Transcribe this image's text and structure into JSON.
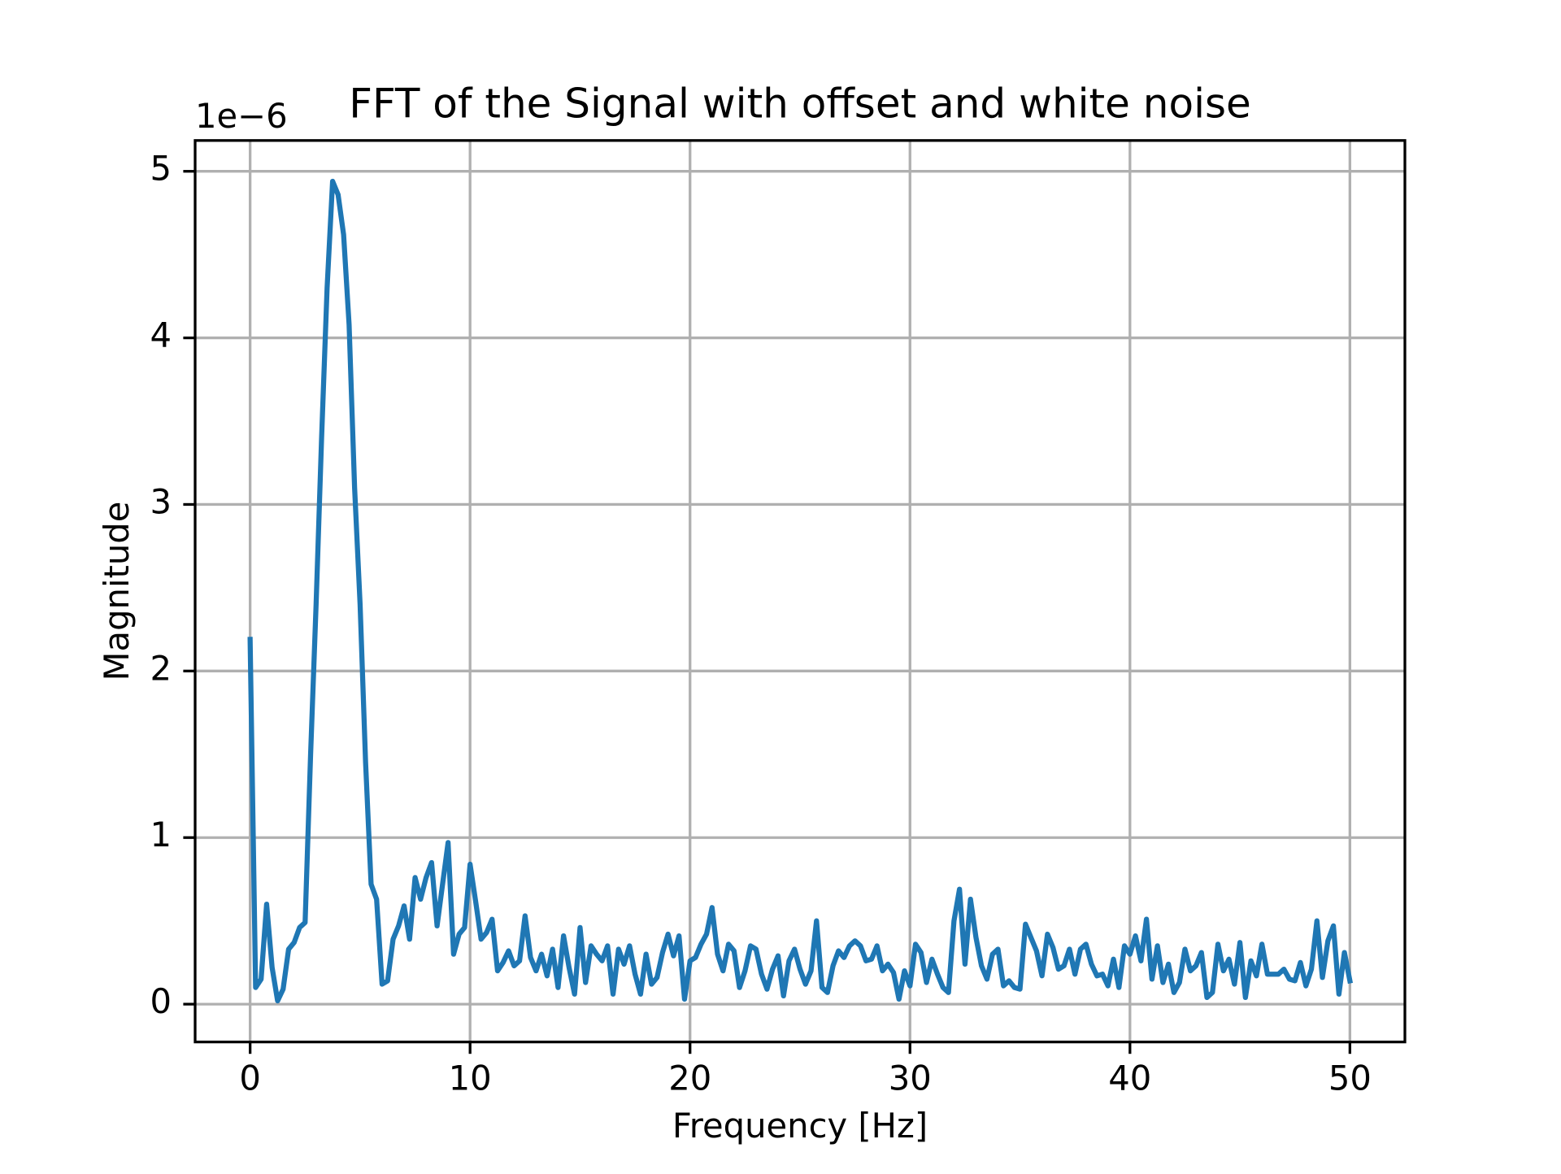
{
  "chart_data": {
    "type": "line",
    "title": "FFT of the Signal with offset and white noise",
    "x_label": "Frequency [Hz]",
    "y_label": "Magnitude",
    "y_offset_label": "1e−6",
    "color": "#1f77b4",
    "grid": true,
    "xlim": [
      -2.5,
      52.5
    ],
    "ylim": [
      -0.227,
      5.185
    ],
    "xticks": [
      0,
      10,
      20,
      30,
      40,
      50
    ],
    "yticks": [
      0,
      1,
      2,
      3,
      4,
      5
    ],
    "x": [
      0,
      0.25,
      0.5,
      0.75,
      1,
      1.25,
      1.5,
      1.75,
      2,
      2.25,
      2.5,
      2.75,
      3,
      3.25,
      3.5,
      3.75,
      4,
      4.25,
      4.5,
      4.75,
      5,
      5.25,
      5.5,
      5.75,
      6,
      6.25,
      6.5,
      6.75,
      7,
      7.25,
      7.5,
      7.75,
      8,
      8.25,
      8.5,
      8.75,
      9,
      9.25,
      9.5,
      9.75,
      10,
      10.25,
      10.5,
      10.75,
      11,
      11.25,
      11.5,
      11.75,
      12,
      12.25,
      12.5,
      12.75,
      13,
      13.25,
      13.5,
      13.75,
      14,
      14.25,
      14.5,
      14.75,
      15,
      15.25,
      15.5,
      15.75,
      16,
      16.25,
      16.5,
      16.75,
      17,
      17.25,
      17.5,
      17.75,
      18,
      18.25,
      18.5,
      18.75,
      19,
      19.25,
      19.5,
      19.75,
      20,
      20.25,
      20.5,
      20.75,
      21,
      21.25,
      21.5,
      21.75,
      22,
      22.25,
      22.5,
      22.75,
      23,
      23.25,
      23.5,
      23.75,
      24,
      24.25,
      24.5,
      24.75,
      25,
      25.25,
      25.5,
      25.75,
      26,
      26.25,
      26.5,
      26.75,
      27,
      27.25,
      27.5,
      27.75,
      28,
      28.25,
      28.5,
      28.75,
      29,
      29.25,
      29.5,
      29.75,
      30,
      30.25,
      30.5,
      30.75,
      31,
      31.25,
      31.5,
      31.75,
      32,
      32.25,
      32.5,
      32.75,
      33,
      33.25,
      33.5,
      33.75,
      34,
      34.25,
      34.5,
      34.75,
      35,
      35.25,
      35.5,
      35.75,
      36,
      36.25,
      36.5,
      36.75,
      37,
      37.25,
      37.5,
      37.75,
      38,
      38.25,
      38.5,
      38.75,
      39,
      39.25,
      39.5,
      39.75,
      40,
      40.25,
      40.5,
      40.75,
      41,
      41.25,
      41.5,
      41.75,
      42,
      42.25,
      42.5,
      42.75,
      43,
      43.25,
      43.5,
      43.75,
      44,
      44.25,
      44.5,
      44.75,
      45,
      45.25,
      45.5,
      45.75,
      46,
      46.25,
      46.5,
      46.75,
      47,
      47.25,
      47.5,
      47.75,
      48,
      48.25,
      48.5,
      48.75,
      49,
      49.25,
      49.5,
      49.75,
      50
    ],
    "values": [
      2.19,
      0.1,
      0.15,
      0.6,
      0.22,
      0.02,
      0.09,
      0.33,
      0.37,
      0.46,
      0.49,
      1.5,
      2.4,
      3.4,
      4.3,
      4.94,
      4.86,
      4.62,
      4.08,
      3.1,
      2.4,
      1.45,
      0.72,
      0.63,
      0.12,
      0.14,
      0.39,
      0.47,
      0.59,
      0.39,
      0.76,
      0.63,
      0.76,
      0.85,
      0.47,
      0.72,
      0.97,
      0.3,
      0.42,
      0.46,
      0.84,
      0.62,
      0.39,
      0.43,
      0.51,
      0.2,
      0.25,
      0.32,
      0.23,
      0.26,
      0.53,
      0.28,
      0.2,
      0.3,
      0.17,
      0.33,
      0.1,
      0.41,
      0.22,
      0.06,
      0.46,
      0.13,
      0.35,
      0.3,
      0.26,
      0.35,
      0.06,
      0.33,
      0.24,
      0.35,
      0.18,
      0.06,
      0.3,
      0.12,
      0.16,
      0.31,
      0.42,
      0.29,
      0.41,
      0.03,
      0.26,
      0.28,
      0.36,
      0.42,
      0.58,
      0.3,
      0.2,
      0.36,
      0.32,
      0.1,
      0.2,
      0.35,
      0.33,
      0.18,
      0.09,
      0.21,
      0.29,
      0.05,
      0.26,
      0.33,
      0.21,
      0.12,
      0.2,
      0.5,
      0.1,
      0.07,
      0.23,
      0.32,
      0.28,
      0.35,
      0.38,
      0.35,
      0.26,
      0.27,
      0.35,
      0.2,
      0.24,
      0.19,
      0.03,
      0.2,
      0.11,
      0.36,
      0.31,
      0.13,
      0.27,
      0.18,
      0.1,
      0.07,
      0.5,
      0.69,
      0.24,
      0.63,
      0.4,
      0.23,
      0.15,
      0.3,
      0.33,
      0.11,
      0.14,
      0.1,
      0.09,
      0.48,
      0.4,
      0.32,
      0.17,
      0.42,
      0.34,
      0.21,
      0.23,
      0.33,
      0.18,
      0.33,
      0.36,
      0.24,
      0.17,
      0.18,
      0.11,
      0.27,
      0.1,
      0.35,
      0.3,
      0.41,
      0.26,
      0.51,
      0.15,
      0.35,
      0.13,
      0.24,
      0.07,
      0.13,
      0.33,
      0.2,
      0.23,
      0.31,
      0.04,
      0.07,
      0.36,
      0.2,
      0.27,
      0.12,
      0.37,
      0.04,
      0.26,
      0.17,
      0.36,
      0.18,
      0.18,
      0.18,
      0.21,
      0.15,
      0.14,
      0.25,
      0.11,
      0.21,
      0.5,
      0.16,
      0.38,
      0.47,
      0.06,
      0.31,
      0.14
    ]
  }
}
